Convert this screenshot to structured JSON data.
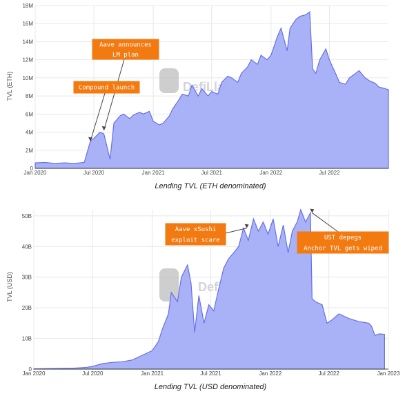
{
  "chart_data": [
    {
      "type": "area",
      "title": "Lending TVL (ETH denominated)",
      "ylabel": "TVL (ETH)",
      "ylim": [
        0,
        18000000
      ],
      "y_ticks": [
        "0",
        "2M",
        "4M",
        "6M",
        "8M",
        "10M",
        "12M",
        "14M",
        "16M",
        "18M"
      ],
      "x_ticks": [
        "Jan 2020",
        "Jul 2020",
        "Jan 2021",
        "Jul 2021",
        "Jan 2022",
        "Jul 2022"
      ],
      "x_range": [
        "2020-01-01",
        "2022-12-31"
      ],
      "grid": true,
      "series": [
        {
          "x": [
            "2020-01-01",
            "2020-02-01",
            "2020-03-01",
            "2020-04-01",
            "2020-05-01",
            "2020-06-01",
            "2020-06-20",
            "2020-07-01",
            "2020-07-20",
            "2020-08-01",
            "2020-08-20",
            "2020-09-01",
            "2020-09-20",
            "2020-10-01",
            "2020-10-20",
            "2020-11-01",
            "2020-11-20",
            "2020-12-01",
            "2020-12-20",
            "2021-01-01",
            "2021-01-20",
            "2021-02-01",
            "2021-02-20",
            "2021-03-01",
            "2021-03-20",
            "2021-04-01",
            "2021-04-20",
            "2021-05-01",
            "2021-05-20",
            "2021-06-01",
            "2021-06-20",
            "2021-07-01",
            "2021-07-20",
            "2021-08-01",
            "2021-08-20",
            "2021-09-01",
            "2021-09-20",
            "2021-10-01",
            "2021-10-20",
            "2021-11-01",
            "2021-11-20",
            "2021-12-01",
            "2021-12-20",
            "2022-01-01",
            "2022-01-20",
            "2022-02-01",
            "2022-02-20",
            "2022-03-01",
            "2022-03-20",
            "2022-04-01",
            "2022-04-20",
            "2022-05-01",
            "2022-05-10",
            "2022-05-20",
            "2022-06-01",
            "2022-06-20",
            "2022-07-01",
            "2022-07-20",
            "2022-08-01",
            "2022-08-20",
            "2022-09-01",
            "2022-09-20",
            "2022-10-01",
            "2022-10-20",
            "2022-11-01",
            "2022-11-20",
            "2022-12-01",
            "2022-12-31"
          ],
          "values": [
            600000,
            650000,
            550000,
            600000,
            550000,
            650000,
            3000000,
            3300000,
            4000000,
            3800000,
            1000000,
            5000000,
            5800000,
            6000000,
            5500000,
            5900000,
            6200000,
            6000000,
            6300000,
            5200000,
            4800000,
            5000000,
            5800000,
            6500000,
            7500000,
            8200000,
            8000000,
            9200000,
            8000000,
            8800000,
            8000000,
            8500000,
            8200000,
            9500000,
            10200000,
            10000000,
            9500000,
            10500000,
            11200000,
            12000000,
            11500000,
            12500000,
            12000000,
            12500000,
            14500000,
            15500000,
            13000000,
            15500000,
            16500000,
            16800000,
            17000000,
            17300000,
            11000000,
            10500000,
            12000000,
            13200000,
            12000000,
            10500000,
            9500000,
            9300000,
            10000000,
            10500000,
            10800000,
            10000000,
            9700000,
            9400000,
            9000000,
            8700000
          ]
        }
      ],
      "annotations": [
        {
          "text": [
            "Aave announces",
            "LM plan"
          ],
          "points_to": "2020-08-01"
        },
        {
          "text": [
            "Compound launch"
          ],
          "points_to": "2020-06-20"
        }
      ],
      "caption": "Lending TVL (ETH denominated)"
    },
    {
      "type": "area",
      "title": "Lending TVL (USD denominated)",
      "ylabel": "TVL (USD)",
      "ylim": [
        0,
        52000000000
      ],
      "y_ticks": [
        "0",
        "10B",
        "20B",
        "30B",
        "40B",
        "50B"
      ],
      "x_ticks": [
        "Jan 2020",
        "Jul 2020",
        "Jan 2021",
        "Jul 2021",
        "Jan 2022",
        "Jul 2022",
        "Jan 2023"
      ],
      "x_range": [
        "2020-01-01",
        "2023-01-01"
      ],
      "grid": true,
      "series": [
        {
          "x": [
            "2020-01-01",
            "2020-03-01",
            "2020-05-01",
            "2020-06-15",
            "2020-07-01",
            "2020-08-01",
            "2020-09-01",
            "2020-10-01",
            "2020-11-01",
            "2020-12-01",
            "2021-01-01",
            "2021-01-20",
            "2021-02-01",
            "2021-02-20",
            "2021-03-01",
            "2021-03-20",
            "2021-04-01",
            "2021-04-20",
            "2021-05-01",
            "2021-05-12",
            "2021-05-25",
            "2021-06-10",
            "2021-06-25",
            "2021-07-10",
            "2021-07-25",
            "2021-08-10",
            "2021-08-25",
            "2021-09-10",
            "2021-09-25",
            "2021-10-10",
            "2021-10-25",
            "2021-11-10",
            "2021-11-25",
            "2021-12-10",
            "2021-12-25",
            "2022-01-10",
            "2022-01-25",
            "2022-02-10",
            "2022-02-25",
            "2022-03-10",
            "2022-03-25",
            "2022-04-05",
            "2022-04-20",
            "2022-05-05",
            "2022-05-10",
            "2022-05-20",
            "2022-06-10",
            "2022-06-25",
            "2022-07-10",
            "2022-08-01",
            "2022-09-01",
            "2022-10-01",
            "2022-11-01",
            "2022-11-10",
            "2022-11-20",
            "2022-12-05",
            "2022-12-20"
          ],
          "values": [
            100000000,
            200000000,
            300000000,
            600000000,
            900000000,
            1800000000,
            2200000000,
            2400000000,
            3000000000,
            4500000000,
            6000000000,
            9000000000,
            13000000000,
            18000000000,
            25000000000,
            22000000000,
            30000000000,
            34000000000,
            28000000000,
            12000000000,
            24000000000,
            15000000000,
            21000000000,
            19000000000,
            26000000000,
            33000000000,
            36000000000,
            38000000000,
            40000000000,
            46000000000,
            42000000000,
            49000000000,
            45000000000,
            48000000000,
            44000000000,
            49000000000,
            40000000000,
            47000000000,
            38000000000,
            45000000000,
            48000000000,
            52000000000,
            48000000000,
            51000000000,
            23000000000,
            22000000000,
            21000000000,
            15000000000,
            16000000000,
            18000000000,
            16500000000,
            15500000000,
            15000000000,
            14000000000,
            11000000000,
            11500000000,
            11300000000
          ]
        }
      ],
      "annotations": [
        {
          "text": [
            "Aave xSushi",
            "exploit scare"
          ],
          "points_to": "2021-10-20"
        },
        {
          "text": [
            "UST depegs",
            "Anchor TVL gets wiped"
          ],
          "points_to": "2022-05-10"
        }
      ],
      "caption": "Lending TVL (USD denominated)"
    }
  ],
  "watermark": {
    "text": "DefiLlama"
  }
}
